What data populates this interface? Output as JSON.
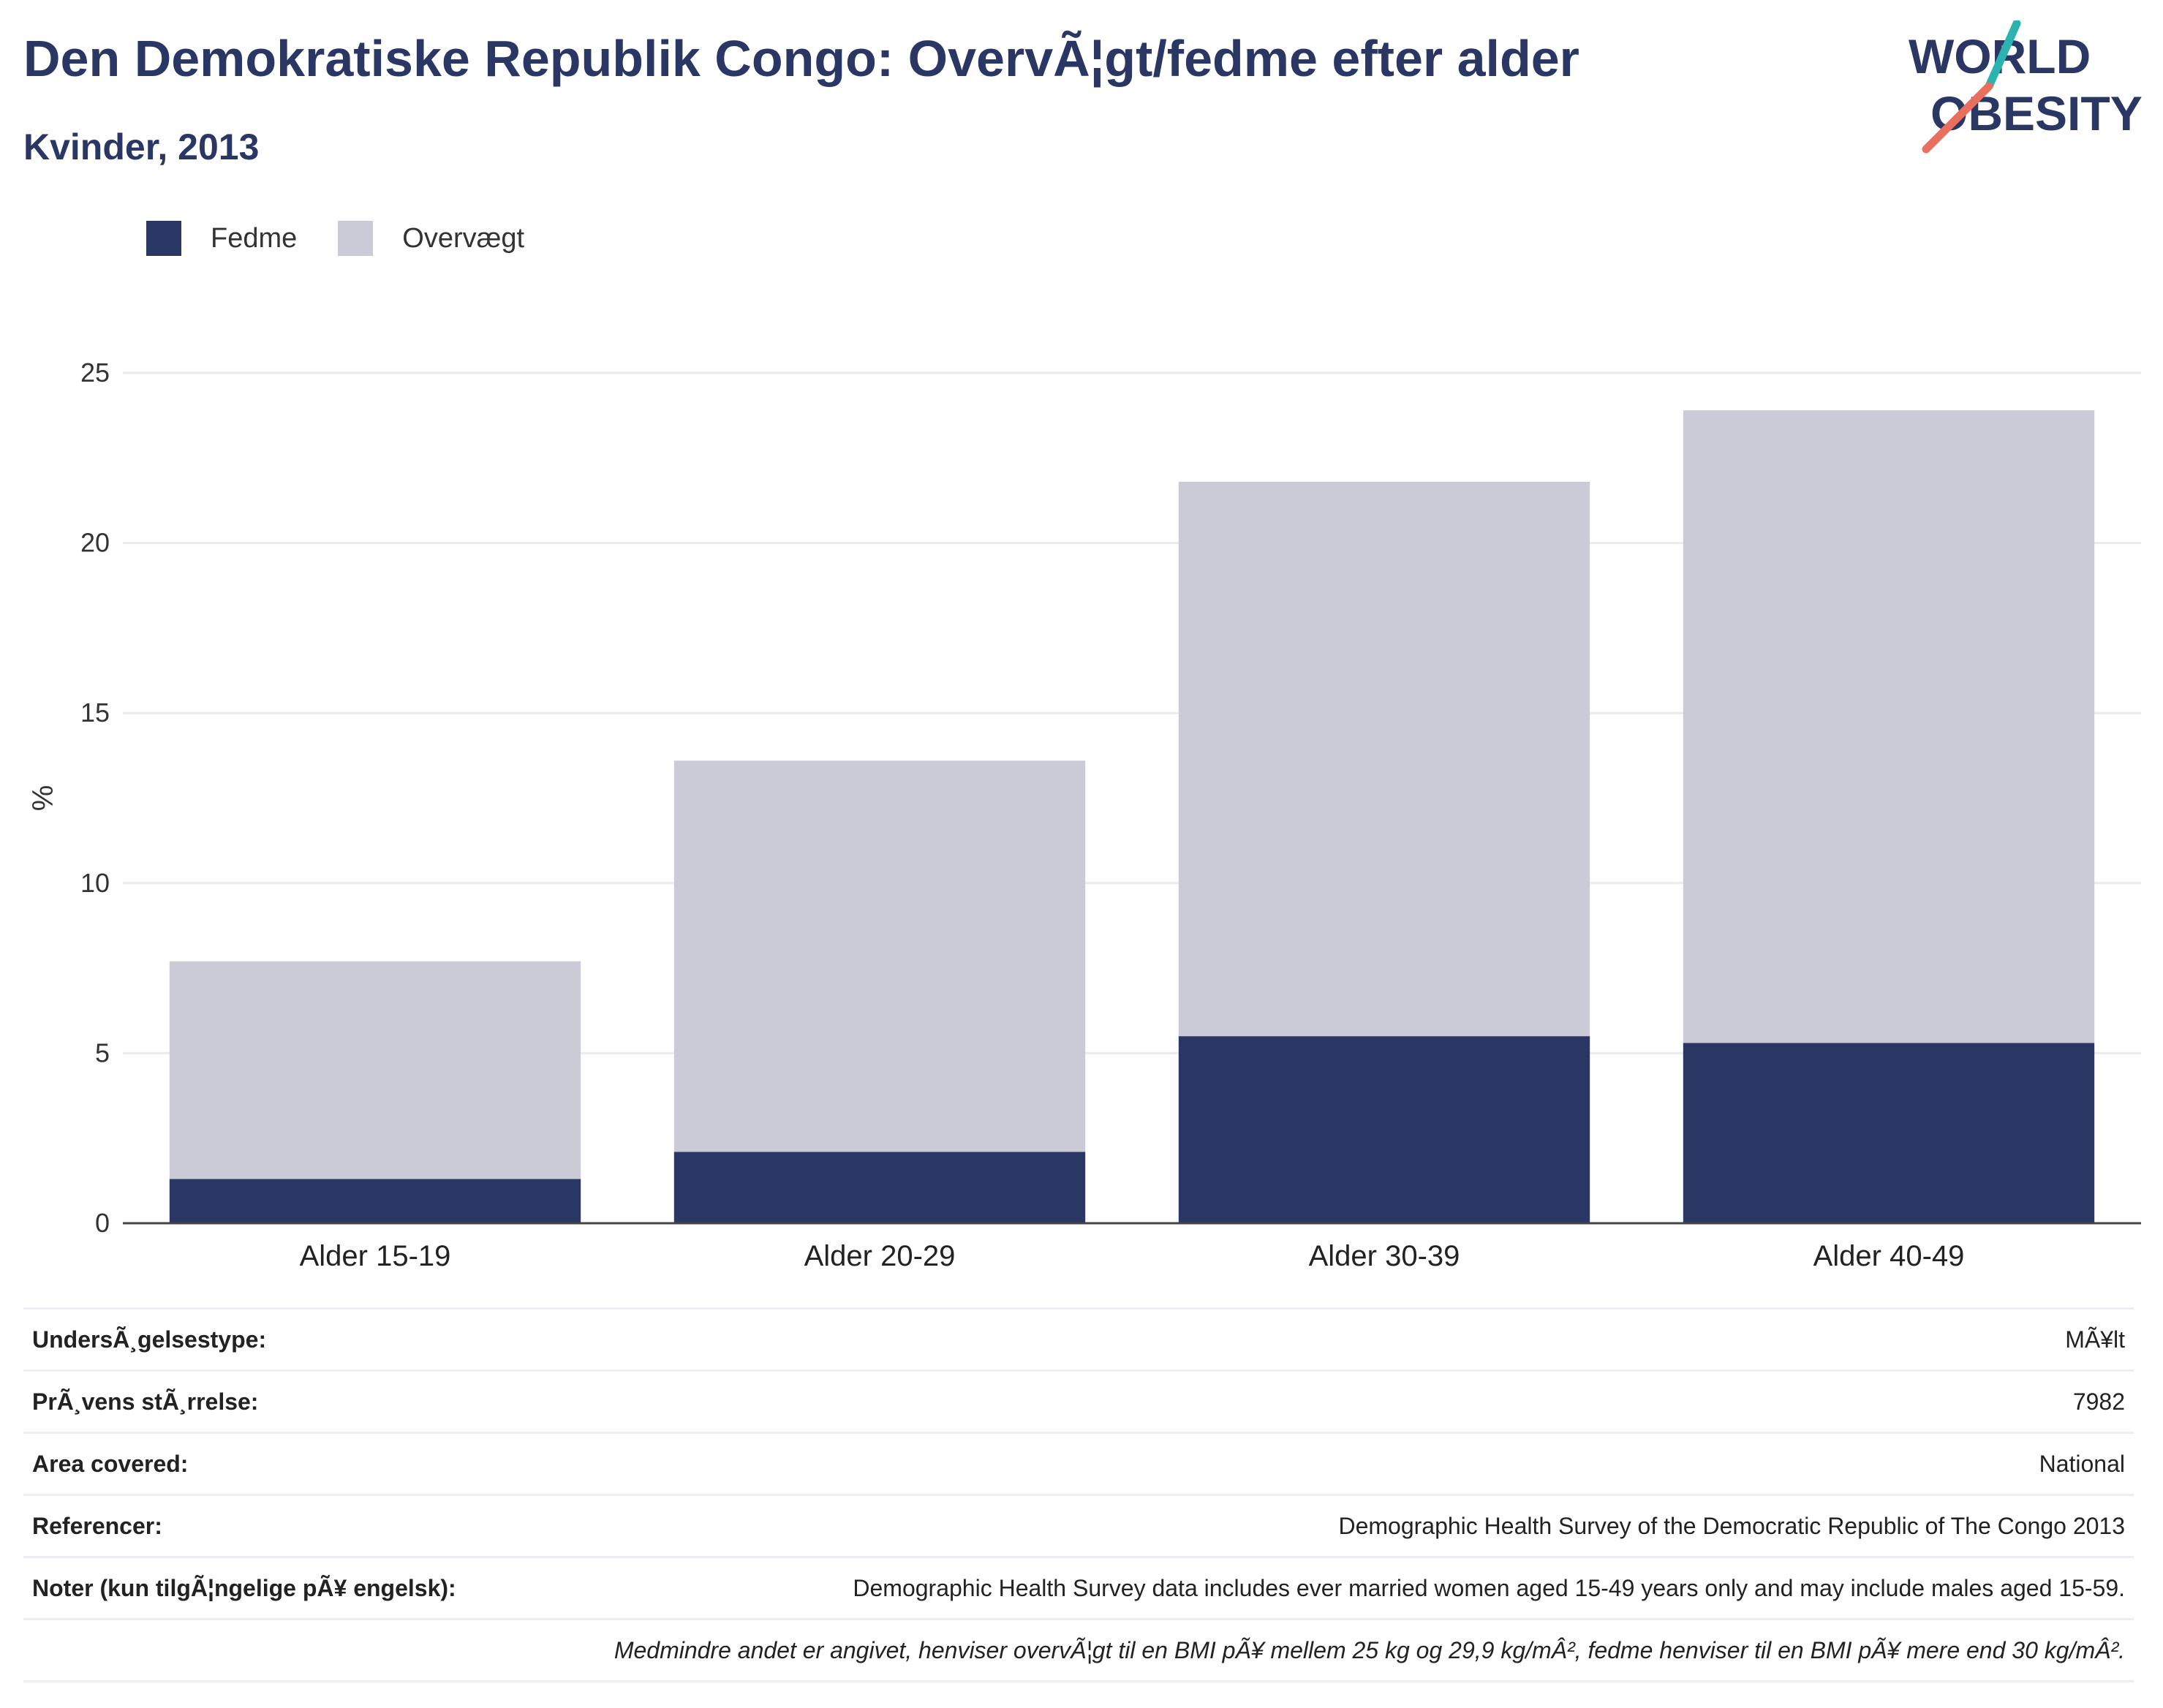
{
  "header": {
    "title": "Den Demokratiske Republik Congo: OvervÃ¦gt/fedme efter alder",
    "subtitle": "Kvinder, 2013",
    "logo_line1": "WORLD",
    "logo_line2": "OBESITY"
  },
  "colors": {
    "fedme": "#2a3663",
    "overvaegt": "#cacbd7",
    "text": "#2a3663",
    "accent_teal": "#2bb3b1",
    "accent_coral": "#e8705f"
  },
  "legend": [
    {
      "label": "Fedme"
    },
    {
      "label": "Overvægt"
    }
  ],
  "chart_data": {
    "type": "bar",
    "stacked": true,
    "categories": [
      "Alder 15-19",
      "Alder 20-29",
      "Alder 30-39",
      "Alder 40-49"
    ],
    "series": [
      {
        "name": "Fedme",
        "values": [
          1.3,
          2.1,
          5.5,
          5.3
        ]
      },
      {
        "name": "Overvægt",
        "values": [
          6.4,
          11.5,
          16.3,
          18.6
        ]
      }
    ],
    "ylabel": "%",
    "ylim": [
      0,
      25
    ],
    "yticks": [
      0,
      5,
      10,
      15,
      20,
      25
    ],
    "grid": true,
    "legend_position": "top-left"
  },
  "info": [
    {
      "key": "UndersÃ¸gelsestype:",
      "value": "MÃ¥lt"
    },
    {
      "key": "PrÃ¸vens stÃ¸rrelse:",
      "value": "7982"
    },
    {
      "key": "Area covered:",
      "value": "National"
    },
    {
      "key": "Referencer:",
      "value": "Demographic Health Survey of the Democratic Republic of The Congo 2013"
    },
    {
      "key": "Noter (kun tilgÃ¦ngelige pÃ¥ engelsk):",
      "value": "Demographic Health Survey data includes ever married women aged 15-49 years only and may include males aged 15-59."
    }
  ],
  "footnote": "Medmindre andet er angivet, henviser overvÃ¦gt til en BMI pÃ¥ mellem 25 kg og 29,9 kg/mÂ², fedme henviser til en BMI pÃ¥ mere end 30 kg/mÂ²."
}
